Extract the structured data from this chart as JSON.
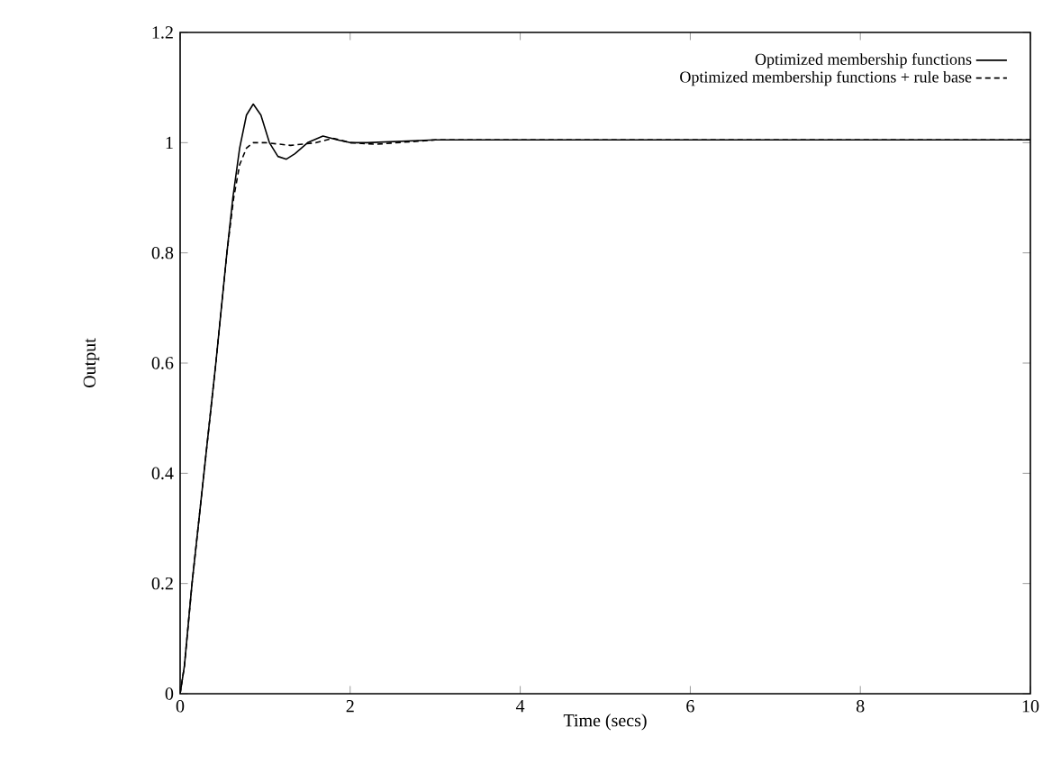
{
  "chart_data": {
    "type": "line",
    "xlabel": "Time (secs)",
    "ylabel": "Output",
    "xlim": [
      0,
      10
    ],
    "ylim": [
      0,
      1.2
    ],
    "xticks": [
      0,
      2,
      4,
      6,
      8,
      10
    ],
    "yticks": [
      0,
      0.2,
      0.4,
      0.6,
      0.8,
      1,
      1.2
    ],
    "legend": "top right",
    "grid": false,
    "series": [
      {
        "name": "Optimized membership functions",
        "color": "#000000",
        "line_style": "solid",
        "x": [
          0,
          0.05,
          0.14,
          0.28,
          0.42,
          0.55,
          0.62,
          0.7,
          0.78,
          0.86,
          0.95,
          1.05,
          1.15,
          1.25,
          1.35,
          1.5,
          1.68,
          1.85,
          2.0,
          2.2,
          3,
          5,
          7,
          10
        ],
        "values": [
          0,
          0.05,
          0.2,
          0.4,
          0.6,
          0.8,
          0.9,
          0.99,
          1.05,
          1.07,
          1.05,
          1.0,
          0.975,
          0.97,
          0.98,
          1.0,
          1.012,
          1.005,
          1.0,
          1.0,
          1.005,
          1.005,
          1.005,
          1.005
        ]
      },
      {
        "name": "Optimized membership functions + rule base",
        "color": "#000000",
        "line_style": "dashed",
        "x": [
          0,
          0.05,
          0.14,
          0.28,
          0.42,
          0.55,
          0.63,
          0.7,
          0.78,
          0.86,
          1.0,
          1.3,
          1.6,
          1.8,
          2.0,
          2.3,
          3,
          5,
          7,
          10
        ],
        "values": [
          0,
          0.05,
          0.2,
          0.4,
          0.6,
          0.8,
          0.9,
          0.96,
          0.99,
          1.0,
          1.0,
          0.995,
          1.0,
          1.008,
          1.0,
          0.997,
          1.005,
          1.005,
          1.005,
          1.005
        ]
      }
    ]
  }
}
